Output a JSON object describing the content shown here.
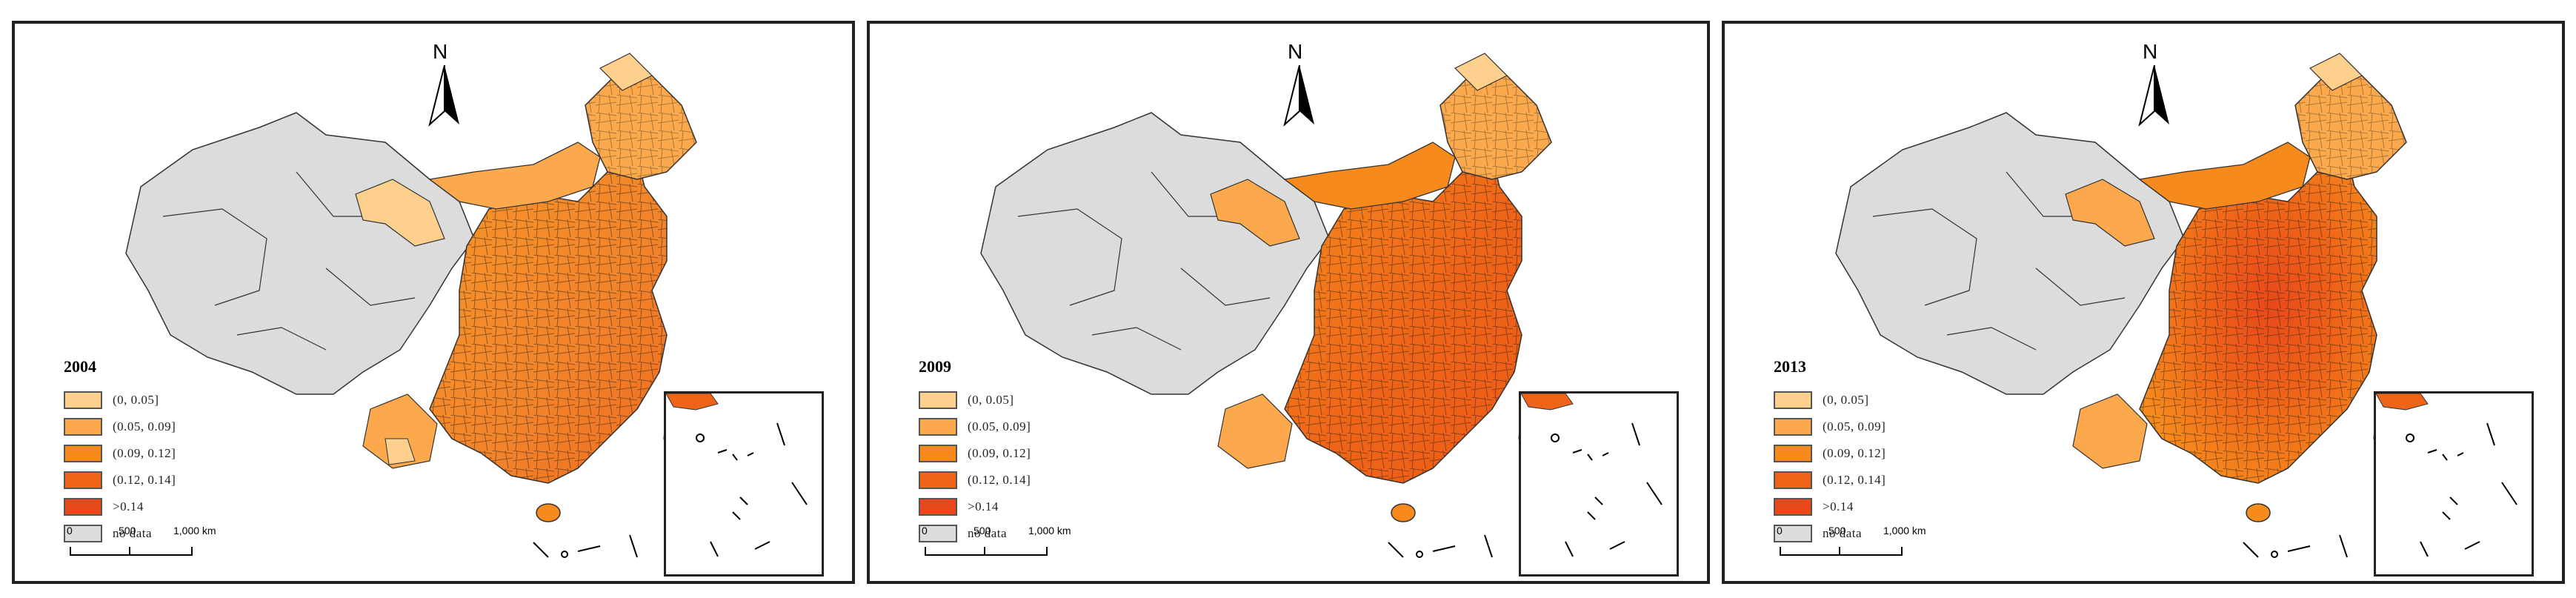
{
  "maps": [
    {
      "year": "2004"
    },
    {
      "year": "2009"
    },
    {
      "year": "2013"
    }
  ],
  "legend": [
    {
      "label": "(0, 0.05]",
      "color": "#fdd08e"
    },
    {
      "label": "(0.05, 0.09]",
      "color": "#fba94c"
    },
    {
      "label": "(0.09, 0.12]",
      "color": "#f68a1c"
    },
    {
      "label": "(0.12, 0.14]",
      "color": "#ef6418"
    },
    {
      "label": ">0.14",
      "color": "#e9481a"
    },
    {
      "label": "no data",
      "color": "#dcdcdc"
    }
  ],
  "north_arrow": {
    "label": "N"
  },
  "scale_bar": {
    "ticks": [
      "0",
      "500",
      "1,000 km"
    ]
  }
}
